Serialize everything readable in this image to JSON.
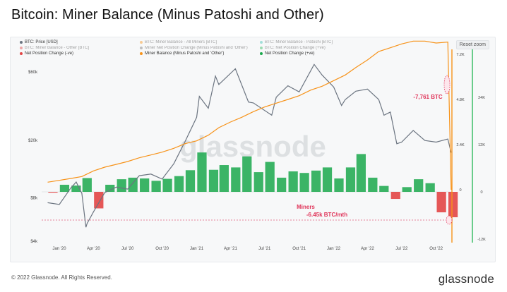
{
  "page": {
    "title": "Bitcoin: Miner Balance (Minus Patoshi and Other)",
    "reset_zoom": "Reset zoom",
    "footer": "© 2022 Glassnode. All Rights Reserved.",
    "brand": "glassnode",
    "watermark": "glassnode"
  },
  "chart_data": {
    "type": "line",
    "legend": [
      {
        "label": "BTC: Price [USD]",
        "color": "#6b7480",
        "active": true
      },
      {
        "label": "BTC: Miner Balance - All Miners [BTC]",
        "color": "#f7931a",
        "active": false
      },
      {
        "label": "BTC: Miner Balance - Patoshi [BTC]",
        "color": "#3cc3b6",
        "active": false
      },
      {
        "label": "BTC: Miner Balance - Other [BTC]",
        "color": "#e24545",
        "active": false
      },
      {
        "label": "Miner Net Position Change (Minus Patoshi and 'Other')",
        "color": "#777777",
        "active": false
      },
      {
        "label": "BTC: Net Position Change (+ve)",
        "color": "#2eb85c",
        "active": false
      },
      {
        "label": "Net Position Change (-ve)",
        "color": "#e24545",
        "active": true
      },
      {
        "label": "Miner Balance (Minus Patoshi and 'Other')",
        "color": "#f7931a",
        "active": true
      },
      {
        "label": "Net Position Change (+ve)",
        "color": "#1aa84c",
        "active": true
      }
    ],
    "x_ticks": [
      "Jan '20",
      "Apr '20",
      "Jul '20",
      "Oct '20",
      "Jan '21",
      "Apr '21",
      "Jul '21",
      "Oct '21",
      "Jan '22",
      "Apr '22",
      "Jul '22",
      "Oct '22"
    ],
    "y_left_ticks": [
      "$60k",
      "$20k",
      "$8k",
      "$4k"
    ],
    "y_mid_ticks": [
      "7.2K",
      "4.8K",
      "2.4K",
      "0"
    ],
    "y_right_ticks": [
      "24K",
      "12K",
      "0",
      "-12K"
    ],
    "price_usd": {
      "x": [
        "2019-12-01",
        "2020-01-01",
        "2020-02-01",
        "2020-02-15",
        "2020-03-01",
        "2020-03-12",
        "2020-03-15",
        "2020-04-01",
        "2020-05-01",
        "2020-06-01",
        "2020-07-01",
        "2020-08-01",
        "2020-09-01",
        "2020-10-01",
        "2020-11-01",
        "2020-12-01",
        "2021-01-01",
        "2021-01-08",
        "2021-02-01",
        "2021-02-20",
        "2021-03-01",
        "2021-04-14",
        "2021-05-19",
        "2021-06-01",
        "2021-07-20",
        "2021-08-01",
        "2021-09-01",
        "2021-10-01",
        "2021-11-10",
        "2021-12-01",
        "2022-01-01",
        "2022-01-22",
        "2022-02-01",
        "2022-03-01",
        "2022-04-01",
        "2022-05-01",
        "2022-05-15",
        "2022-06-01",
        "2022-06-18",
        "2022-07-01",
        "2022-08-01",
        "2022-09-01",
        "2022-10-01",
        "2022-11-01",
        "2022-11-10"
      ],
      "y": [
        7400,
        7200,
        9400,
        10300,
        8600,
        5000,
        5300,
        6400,
        8700,
        9500,
        9200,
        11400,
        11700,
        10800,
        13800,
        19700,
        29000,
        40500,
        33500,
        56000,
        49000,
        63000,
        37000,
        36500,
        30000,
        40000,
        48000,
        43500,
        67500,
        57000,
        47000,
        35000,
        38500,
        44000,
        45500,
        38500,
        30000,
        31500,
        19000,
        19500,
        23500,
        20000,
        19500,
        20500,
        16500
      ]
    },
    "miner_balance_btc": {
      "x": [
        "2019-12-01",
        "2020-01-01",
        "2020-02-01",
        "2020-03-01",
        "2020-04-01",
        "2020-05-01",
        "2020-06-01",
        "2020-07-01",
        "2020-08-01",
        "2020-09-01",
        "2020-10-01",
        "2020-11-01",
        "2020-12-01",
        "2021-01-01",
        "2021-02-01",
        "2021-03-01",
        "2021-04-01",
        "2021-05-01",
        "2021-06-01",
        "2021-07-01",
        "2021-08-01",
        "2021-09-01",
        "2021-10-01",
        "2021-11-01",
        "2021-12-01",
        "2022-01-01",
        "2022-02-01",
        "2022-03-01",
        "2022-04-01",
        "2022-05-01",
        "2022-06-01",
        "2022-07-01",
        "2022-08-01",
        "2022-09-01",
        "2022-10-01",
        "2022-11-01",
        "2022-11-10"
      ],
      "y": [
        400,
        500,
        600,
        700,
        1000,
        1200,
        1350,
        1500,
        1700,
        1850,
        2000,
        2200,
        2450,
        2600,
        2900,
        3300,
        3600,
        3850,
        4150,
        4400,
        4600,
        4800,
        5000,
        5300,
        5500,
        5800,
        6100,
        6500,
        6900,
        7350,
        7550,
        7750,
        7900,
        7900,
        7800,
        7850,
        0
      ]
    },
    "net_position_change_btc_per_month": {
      "x": [
        "2019-12",
        "2020-01",
        "2020-02",
        "2020-03",
        "2020-04",
        "2020-05",
        "2020-06",
        "2020-07",
        "2020-08",
        "2020-09",
        "2020-10",
        "2020-11",
        "2020-12",
        "2021-01",
        "2021-02",
        "2021-03",
        "2021-04",
        "2021-05",
        "2021-06",
        "2021-07",
        "2021-08",
        "2021-09",
        "2021-10",
        "2021-11",
        "2021-12",
        "2022-01",
        "2022-02",
        "2022-03",
        "2022-04",
        "2022-05",
        "2022-06",
        "2022-07",
        "2022-08",
        "2022-09",
        "2022-10",
        "2022-11"
      ],
      "y": [
        -200,
        1800,
        1600,
        3500,
        -4200,
        1800,
        3200,
        3600,
        3400,
        2800,
        3300,
        4000,
        5500,
        10000,
        5600,
        6800,
        6200,
        9000,
        5000,
        7600,
        3600,
        5200,
        4800,
        5400,
        6200,
        3400,
        6200,
        9600,
        3600,
        1500,
        -1800,
        1200,
        3200,
        2200,
        -5200,
        -6450
      ]
    },
    "annotations": [
      {
        "label": "-7,761 BTC",
        "color": "#e0355a"
      },
      {
        "label": "Miners",
        "color": "#e0355a"
      },
      {
        "label": "-6.45k BTC/mth",
        "color": "#e0355a"
      }
    ]
  }
}
